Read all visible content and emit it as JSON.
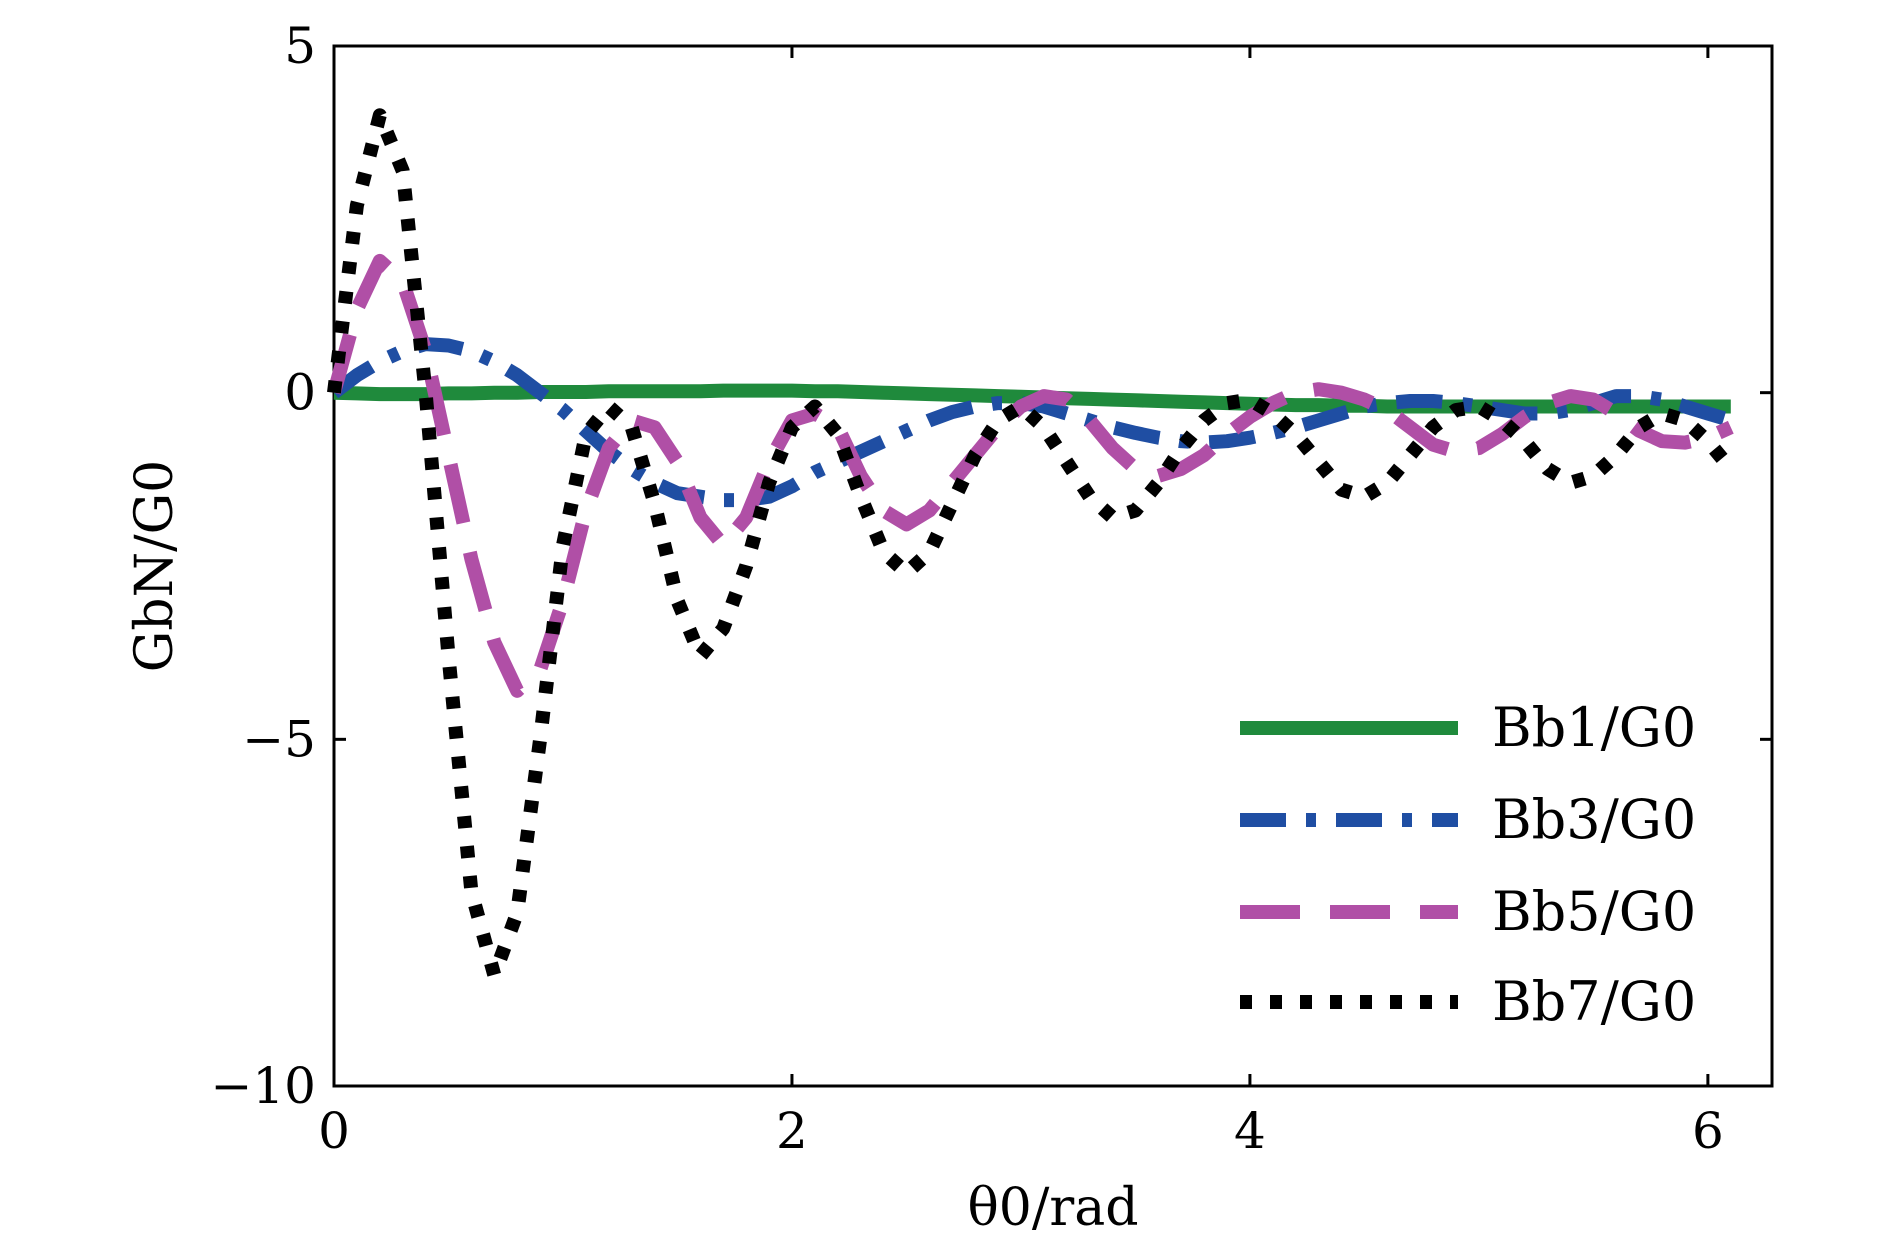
{
  "chart_data": {
    "type": "line",
    "xlabel": "θ0/rad",
    "ylabel": "GbN/G0",
    "xlim": [
      0,
      6.28
    ],
    "ylim": [
      -10,
      5
    ],
    "xticks": [
      0,
      2,
      4,
      6
    ],
    "yticks": [
      -10,
      -5,
      0,
      5
    ],
    "x_tick_labels": [
      "0",
      "2",
      "4",
      "6"
    ],
    "y_tick_labels": [
      "−10",
      "−5",
      "0",
      "5"
    ],
    "grid": false,
    "legend_position": "bottom-right",
    "x": [
      0,
      0.1,
      0.2,
      0.3,
      0.4,
      0.5,
      0.6,
      0.7,
      0.8,
      0.9,
      1.0,
      1.1,
      1.2,
      1.3,
      1.4,
      1.5,
      1.6,
      1.7,
      1.8,
      1.9,
      2.0,
      2.1,
      2.2,
      2.3,
      2.4,
      2.5,
      2.6,
      2.7,
      2.8,
      2.9,
      3.0,
      3.1,
      3.2,
      3.3,
      3.4,
      3.5,
      3.6,
      3.7,
      3.8,
      3.9,
      4.0,
      4.1,
      4.2,
      4.3,
      4.4,
      4.5,
      4.6,
      4.7,
      4.8,
      4.9,
      5.0,
      5.1,
      5.2,
      5.3,
      5.4,
      5.5,
      5.6,
      5.7,
      5.8,
      5.9,
      6.0,
      6.1
    ],
    "series": [
      {
        "name": "Bb1/G0",
        "color": "#1f8a3c",
        "dash": "solid",
        "values": [
          0,
          -0.01,
          -0.02,
          -0.02,
          -0.02,
          -0.01,
          -0.01,
          0,
          0,
          0.01,
          0.01,
          0.01,
          0.02,
          0.02,
          0.02,
          0.02,
          0.02,
          0.03,
          0.03,
          0.03,
          0.03,
          0.02,
          0.02,
          0.01,
          0,
          -0.01,
          -0.02,
          -0.03,
          -0.04,
          -0.05,
          -0.06,
          -0.07,
          -0.08,
          -0.09,
          -0.1,
          -0.11,
          -0.12,
          -0.13,
          -0.14,
          -0.15,
          -0.16,
          -0.17,
          -0.18,
          -0.18,
          -0.19,
          -0.19,
          -0.2,
          -0.2,
          -0.2,
          -0.2,
          -0.2,
          -0.2,
          -0.2,
          -0.2,
          -0.2,
          -0.2,
          -0.2,
          -0.2,
          -0.2,
          -0.2,
          -0.2,
          -0.2
        ]
      },
      {
        "name": "Bb3/G0",
        "color": "#1f4ea3",
        "dash": "dashdot",
        "values": [
          0,
          0.25,
          0.45,
          0.6,
          0.7,
          0.68,
          0.6,
          0.45,
          0.25,
          0,
          -0.25,
          -0.55,
          -0.85,
          -1.1,
          -1.3,
          -1.45,
          -1.5,
          -1.55,
          -1.55,
          -1.5,
          -1.35,
          -1.15,
          -1.0,
          -0.85,
          -0.7,
          -0.55,
          -0.4,
          -0.28,
          -0.2,
          -0.15,
          -0.15,
          -0.2,
          -0.3,
          -0.4,
          -0.5,
          -0.58,
          -0.65,
          -0.7,
          -0.72,
          -0.7,
          -0.65,
          -0.58,
          -0.5,
          -0.4,
          -0.3,
          -0.2,
          -0.15,
          -0.12,
          -0.12,
          -0.15,
          -0.2,
          -0.25,
          -0.3,
          -0.3,
          -0.25,
          -0.15,
          -0.05,
          -0.05,
          -0.1,
          -0.2,
          -0.3,
          -0.4
        ]
      },
      {
        "name": "Bb5/G0",
        "color": "#b04fa6",
        "dash": "dashed",
        "values": [
          0,
          1.2,
          1.9,
          1.6,
          0.6,
          -0.9,
          -2.4,
          -3.6,
          -4.3,
          -4.0,
          -3.0,
          -1.7,
          -0.8,
          -0.4,
          -0.5,
          -1.0,
          -1.8,
          -2.2,
          -1.8,
          -1.0,
          -0.4,
          -0.3,
          -0.5,
          -1.2,
          -1.7,
          -1.9,
          -1.7,
          -1.3,
          -0.9,
          -0.5,
          -0.2,
          -0.05,
          -0.1,
          -0.4,
          -0.8,
          -1.1,
          -1.2,
          -1.1,
          -0.9,
          -0.6,
          -0.35,
          -0.15,
          0,
          0.05,
          0,
          -0.1,
          -0.25,
          -0.5,
          -0.75,
          -0.85,
          -0.8,
          -0.6,
          -0.35,
          -0.15,
          -0.05,
          -0.1,
          -0.3,
          -0.55,
          -0.7,
          -0.72,
          -0.65,
          -0.5
        ]
      },
      {
        "name": "Bb7/G0",
        "color": "#000000",
        "dash": "dotted",
        "values": [
          0,
          2.7,
          4.0,
          3.2,
          0,
          -3.8,
          -7.2,
          -8.4,
          -7.5,
          -5.0,
          -2.2,
          -0.6,
          -0.2,
          -0.5,
          -1.6,
          -3.0,
          -3.8,
          -3.4,
          -2.5,
          -1.3,
          -0.5,
          -0.2,
          -0.6,
          -1.5,
          -2.3,
          -2.6,
          -2.3,
          -1.6,
          -0.9,
          -0.4,
          -0.2,
          -0.5,
          -1.0,
          -1.5,
          -1.8,
          -1.7,
          -1.3,
          -0.8,
          -0.4,
          -0.15,
          -0.1,
          -0.3,
          -0.6,
          -1.0,
          -1.4,
          -1.5,
          -1.3,
          -0.9,
          -0.5,
          -0.25,
          -0.2,
          -0.4,
          -0.7,
          -1.1,
          -1.3,
          -1.2,
          -0.9,
          -0.5,
          -0.3,
          -0.4,
          -0.7,
          -1.1
        ]
      }
    ]
  },
  "legend": {
    "entries": [
      {
        "label": "Bb1/G0"
      },
      {
        "label": "Bb3/G0"
      },
      {
        "label": "Bb5/G0"
      },
      {
        "label": "Bb7/G0"
      }
    ]
  }
}
